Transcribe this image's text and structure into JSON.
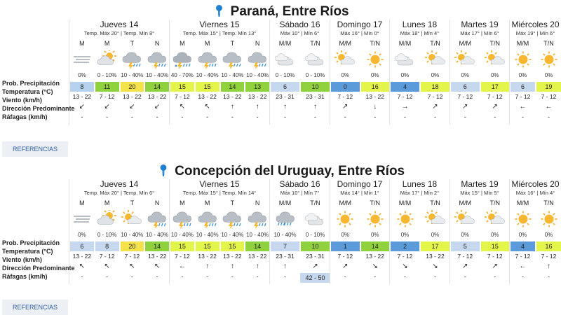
{
  "labels": {
    "prob": "Prob. Precipitación",
    "temp": "Temperatura (°C)",
    "wind": "Viento (km/h)",
    "dir": "Dirección Predominante",
    "gust": "Ráfagas (km/h)",
    "references": "REFERENCIAS"
  },
  "cities": [
    {
      "title": "Paraná, Entre Ríos",
      "days": [
        {
          "name": "Jueves 14",
          "temps": "Temp. Máx 20° | Temp. Mín 8°",
          "slots": [
            {
              "label": "M",
              "icon": "fog-icon",
              "prob": "0%",
              "temp": "8",
              "temp_color": "#b6d2ef",
              "wind": "13 - 22",
              "dir": "↙",
              "gust": "-"
            },
            {
              "label": "M",
              "icon": "partly-cloudy-icon",
              "prob": "0 - 10%",
              "temp": "11",
              "temp_color": "#8fd23d",
              "wind": "7 - 12",
              "dir": "↙",
              "gust": "-"
            },
            {
              "label": "T",
              "icon": "storm-icon",
              "prob": "10 - 40%",
              "temp": "20",
              "temp_color": "#f3e24a",
              "wind": "13 - 22",
              "dir": "↙",
              "gust": "-"
            },
            {
              "label": "N",
              "icon": "storm-icon",
              "prob": "10 - 40%",
              "temp": "14",
              "temp_color": "#8fd23d",
              "wind": "13 - 22",
              "dir": "↙",
              "gust": "-"
            }
          ]
        },
        {
          "name": "Viernes 15",
          "temps": "Temp. Máx 15° | Temp. Mín 13°",
          "slots": [
            {
              "label": "M",
              "icon": "storm-rain-icon",
              "prob": "40 - 70%",
              "temp": "15",
              "temp_color": "#e3f54a",
              "wind": "7 - 12",
              "dir": "↖",
              "gust": "-"
            },
            {
              "label": "M",
              "icon": "storm-icon",
              "prob": "10 - 40%",
              "temp": "15",
              "temp_color": "#e3f54a",
              "wind": "13 - 22",
              "dir": "↖",
              "gust": "-"
            },
            {
              "label": "T",
              "icon": "storm-icon",
              "prob": "10 - 40%",
              "temp": "14",
              "temp_color": "#8fd23d",
              "wind": "13 - 22",
              "dir": "↑",
              "gust": "-"
            },
            {
              "label": "N",
              "icon": "storm-icon",
              "prob": "10 - 40%",
              "temp": "13",
              "temp_color": "#8fd23d",
              "wind": "13 - 22",
              "dir": "↑",
              "gust": "-"
            }
          ]
        },
        {
          "name": "Sábado 16",
          "temps": "Máx 10° | Mín 6°",
          "slots": [
            {
              "label": "M/M",
              "icon": "cloud-icon",
              "prob": "0 - 10%",
              "temp": "6",
              "temp_color": "#c6d8ee",
              "wind": "23 - 31",
              "dir": "↑",
              "gust": "-"
            },
            {
              "label": "T/N",
              "icon": "cloud-icon",
              "prob": "0 - 10%",
              "temp": "10",
              "temp_color": "#8fd23d",
              "wind": "23 - 31",
              "dir": "↑",
              "gust": "-"
            }
          ]
        },
        {
          "name": "Domingo 17",
          "temps": "Máx 16° | Mín 0°",
          "slots": [
            {
              "label": "M/M",
              "icon": "partly-sunny-icon",
              "prob": "0%",
              "temp": "0",
              "temp_color": "#5b9bd9",
              "wind": "7 - 12",
              "dir": "↗",
              "gust": "-"
            },
            {
              "label": "T/N",
              "icon": "sun-icon",
              "prob": "0%",
              "temp": "16",
              "temp_color": "#e3f54a",
              "wind": "13 - 22",
              "dir": "↓",
              "gust": "-"
            }
          ]
        },
        {
          "name": "Lunes 18",
          "temps": "Máx 18° | Mín 4°",
          "slots": [
            {
              "label": "M/M",
              "icon": "cloud-icon",
              "prob": "0%",
              "temp": "4",
              "temp_color": "#5b9bd9",
              "wind": "7 - 12",
              "dir": "→",
              "gust": "-"
            },
            {
              "label": "T/N",
              "icon": "partly-sunny-icon",
              "prob": "0%",
              "temp": "18",
              "temp_color": "#e3f54a",
              "wind": "7 - 12",
              "dir": "↗",
              "gust": "-"
            }
          ]
        },
        {
          "name": "Martes 19",
          "temps": "Máx 17° | Mín 6°",
          "slots": [
            {
              "label": "M/M",
              "icon": "partly-sunny-icon",
              "prob": "0%",
              "temp": "6",
              "temp_color": "#c6d8ee",
              "wind": "7 - 12",
              "dir": "↗",
              "gust": "-"
            },
            {
              "label": "T/N",
              "icon": "partly-sunny-icon",
              "prob": "0%",
              "temp": "17",
              "temp_color": "#e3f54a",
              "wind": "7 - 12",
              "dir": "↗",
              "gust": "-"
            }
          ]
        },
        {
          "name": "Miércoles 20",
          "temps": "Máx 19° | Mín 6°",
          "slots": [
            {
              "label": "M/M",
              "icon": "sun-icon",
              "prob": "0%",
              "temp": "6",
              "temp_color": "#c6d8ee",
              "wind": "7 - 12",
              "dir": "←",
              "gust": "-"
            },
            {
              "label": "T/N",
              "icon": "sun-icon",
              "prob": "0%",
              "temp": "19",
              "temp_color": "#e3f54a",
              "wind": "7 - 12",
              "dir": "←",
              "gust": "-"
            }
          ]
        }
      ]
    },
    {
      "title": "Concepción del Uruguay, Entre Ríos",
      "days": [
        {
          "name": "Jueves 14",
          "temps": "Temp. Máx 20° | Temp. Mín 6°",
          "slots": [
            {
              "label": "M",
              "icon": "fog-icon",
              "prob": "0%",
              "temp": "6",
              "temp_color": "#c6d8ee",
              "wind": "13 - 22",
              "dir": "↖",
              "gust": "-"
            },
            {
              "label": "M",
              "icon": "partly-cloudy-icon",
              "prob": "0 - 10%",
              "temp": "8",
              "temp_color": "#c6d8ee",
              "wind": "7 - 12",
              "dir": "↖",
              "gust": "-"
            },
            {
              "label": "T",
              "icon": "partly-sunny-icon",
              "prob": "10 - 40%",
              "temp": "20",
              "temp_color": "#f3e24a",
              "wind": "7 - 12",
              "dir": "↖",
              "gust": "-"
            },
            {
              "label": "N",
              "icon": "storm-icon",
              "prob": "10 - 40%",
              "temp": "14",
              "temp_color": "#8fd23d",
              "wind": "13 - 22",
              "dir": "↖",
              "gust": "-"
            }
          ]
        },
        {
          "name": "Viernes 15",
          "temps": "Temp. Máx 15° | Temp. Mín 14°",
          "slots": [
            {
              "label": "M",
              "icon": "storm-icon",
              "prob": "10 - 40%",
              "temp": "15",
              "temp_color": "#e3f54a",
              "wind": "7 - 12",
              "dir": "←",
              "gust": "-"
            },
            {
              "label": "M",
              "icon": "storm-icon",
              "prob": "10 - 40%",
              "temp": "15",
              "temp_color": "#e3f54a",
              "wind": "13 - 22",
              "dir": "↑",
              "gust": "-"
            },
            {
              "label": "T",
              "icon": "storm-icon",
              "prob": "10 - 40%",
              "temp": "15",
              "temp_color": "#e3f54a",
              "wind": "13 - 22",
              "dir": "↑",
              "gust": "-"
            },
            {
              "label": "N",
              "icon": "storm-icon",
              "prob": "10 - 40%",
              "temp": "14",
              "temp_color": "#8fd23d",
              "wind": "13 - 22",
              "dir": "↑",
              "gust": "-"
            }
          ]
        },
        {
          "name": "Sábado 16",
          "temps": "Máx 10° | Mín 7°",
          "slots": [
            {
              "label": "M/M",
              "icon": "rain-icon",
              "prob": "10 - 40%",
              "temp": "7",
              "temp_color": "#c6d8ee",
              "wind": "23 - 31",
              "dir": "↑",
              "gust": "-"
            },
            {
              "label": "T/N",
              "icon": "cloud-icon",
              "prob": "0 - 10%",
              "temp": "10",
              "temp_color": "#8fd23d",
              "wind": "23 - 31",
              "dir": "↗",
              "gust": "42 - 50"
            }
          ]
        },
        {
          "name": "Domingo 17",
          "temps": "Máx 14° | Mín 1°",
          "slots": [
            {
              "label": "M/M",
              "icon": "sun-icon",
              "prob": "0%",
              "temp": "1",
              "temp_color": "#5b9bd9",
              "wind": "7 - 12",
              "dir": "↗",
              "gust": "-"
            },
            {
              "label": "T/N",
              "icon": "sun-icon",
              "prob": "0%",
              "temp": "14",
              "temp_color": "#8fd23d",
              "wind": "13 - 22",
              "dir": "↘",
              "gust": "-"
            }
          ]
        },
        {
          "name": "Lunes 18",
          "temps": "Máx 17° | Mín 2°",
          "slots": [
            {
              "label": "M/M",
              "icon": "sun-icon",
              "prob": "0%",
              "temp": "2",
              "temp_color": "#5b9bd9",
              "wind": "7 - 12",
              "dir": "↘",
              "gust": "-"
            },
            {
              "label": "T/N",
              "icon": "partly-sunny-icon",
              "prob": "0%",
              "temp": "17",
              "temp_color": "#e3f54a",
              "wind": "13 - 22",
              "dir": "↘",
              "gust": "-"
            }
          ]
        },
        {
          "name": "Martes 19",
          "temps": "Máx 15° | Mín 5°",
          "slots": [
            {
              "label": "M/M",
              "icon": "partly-sunny-icon",
              "prob": "0%",
              "temp": "5",
              "temp_color": "#c6d8ee",
              "wind": "7 - 12",
              "dir": "↗",
              "gust": "-"
            },
            {
              "label": "T/N",
              "icon": "partly-sunny-icon",
              "prob": "0%",
              "temp": "15",
              "temp_color": "#e3f54a",
              "wind": "7 - 12",
              "dir": "↗",
              "gust": "-"
            }
          ]
        },
        {
          "name": "Miércoles 20",
          "temps": "Máx 16° | Mín 4°",
          "slots": [
            {
              "label": "M/M",
              "icon": "sun-icon",
              "prob": "0%",
              "temp": "4",
              "temp_color": "#5b9bd9",
              "wind": "7 - 12",
              "dir": "←",
              "gust": "-"
            },
            {
              "label": "T/N",
              "icon": "sun-icon",
              "prob": "0%",
              "temp": "16",
              "temp_color": "#e3f54a",
              "wind": "7 - 12",
              "dir": "↑",
              "gust": "-"
            }
          ]
        }
      ]
    }
  ]
}
